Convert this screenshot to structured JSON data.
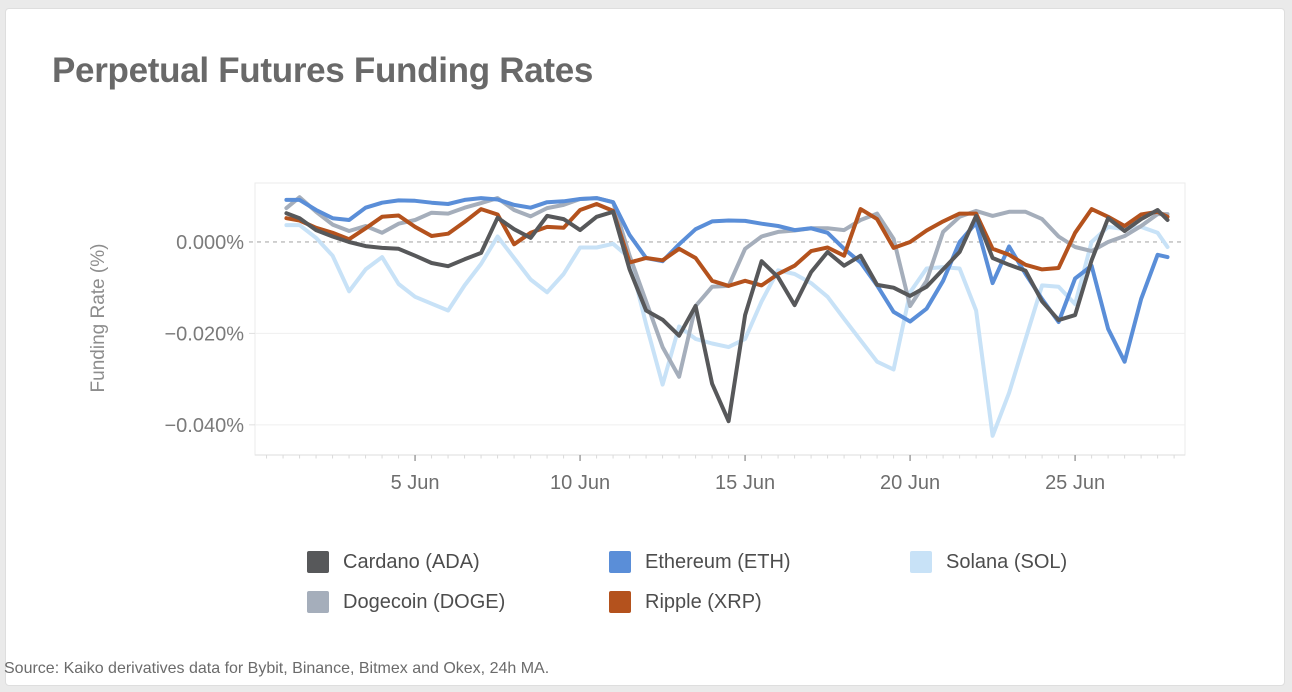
{
  "page": {
    "background": "#eaeaea",
    "card_background": "#ffffff"
  },
  "source": {
    "text": "Source: Kaiko derivatives data for Bybit, Binance, Bitmex and Okex, 24h MA."
  },
  "chart_data": {
    "type": "line",
    "title": "Perpetual Futures Funding Rates",
    "ylabel": "Funding Rate (%)",
    "xlabel": "",
    "x_unit": "day of June",
    "xlim": [
      0.15,
      28.33
    ],
    "ylim": [
      -0.0466,
      0.0129
    ],
    "grid": "horizontal",
    "legend_position": "bottom",
    "zero_line_dashed": true,
    "y_ticks": [
      {
        "v": 0,
        "label": "0.000%"
      },
      {
        "v": -0.02,
        "label": "−0.020%"
      },
      {
        "v": -0.04,
        "label": "−0.040%"
      }
    ],
    "x_ticks": [
      {
        "v": 5,
        "label": "5 Jun"
      },
      {
        "v": 10,
        "label": "10 Jun"
      },
      {
        "v": 15,
        "label": "15 Jun"
      },
      {
        "v": 20,
        "label": "20 Jun"
      },
      {
        "v": 25,
        "label": "25 Jun"
      }
    ],
    "x_minor_tick_step": 0.5,
    "x": [
      1.1,
      1.5,
      2,
      2.5,
      3,
      3.5,
      4,
      4.5,
      5,
      5.5,
      6,
      6.5,
      7,
      7.5,
      8,
      8.5,
      9,
      9.5,
      10,
      10.5,
      11,
      11.5,
      12,
      12.5,
      13,
      13.5,
      14,
      14.5,
      15,
      15.5,
      16,
      16.5,
      17,
      17.5,
      18,
      18.5,
      19,
      19.5,
      20,
      20.5,
      21,
      21.5,
      22,
      22.5,
      23,
      23.5,
      24,
      24.5,
      25,
      25.5,
      26,
      26.5,
      27,
      27.5,
      27.8
    ],
    "series": [
      {
        "name": "Cardano (ADA)",
        "color": "#57585a",
        "values": [
          0.0063,
          0.0052,
          0.0026,
          0.0012,
          0.0,
          -0.0009,
          -0.0013,
          -0.0015,
          -0.003,
          -0.0046,
          -0.0053,
          -0.0038,
          -0.0024,
          0.0053,
          0.0028,
          0.0009,
          0.0057,
          0.005,
          0.0026,
          0.0055,
          0.0066,
          -0.006,
          -0.015,
          -0.017,
          -0.0205,
          -0.014,
          -0.031,
          -0.0392,
          -0.016,
          -0.0042,
          -0.0077,
          -0.0138,
          -0.0066,
          -0.0022,
          -0.0052,
          -0.003,
          -0.0094,
          -0.01,
          -0.0118,
          -0.0098,
          -0.006,
          -0.0022,
          0.0057,
          -0.0035,
          -0.005,
          -0.0063,
          -0.013,
          -0.0171,
          -0.016,
          -0.004,
          0.0052,
          0.0024,
          0.005,
          0.007,
          0.0048
        ]
      },
      {
        "name": "Ethereum (ETH)",
        "color": "#5a8ed8",
        "values": [
          0.0092,
          0.0092,
          0.007,
          0.0052,
          0.0048,
          0.0075,
          0.0086,
          0.0091,
          0.009,
          0.0086,
          0.0083,
          0.0092,
          0.0096,
          0.0093,
          0.0081,
          0.0075,
          0.0087,
          0.0089,
          0.0094,
          0.0096,
          0.0087,
          0.0015,
          -0.0035,
          -0.0042,
          -0.0005,
          0.0028,
          0.0045,
          0.0047,
          0.0046,
          0.004,
          0.0035,
          0.0026,
          0.003,
          0.002,
          -0.0015,
          -0.0045,
          -0.0095,
          -0.0153,
          -0.0174,
          -0.0146,
          -0.0085,
          0.0,
          0.0042,
          -0.009,
          -0.001,
          -0.007,
          -0.0125,
          -0.0175,
          -0.008,
          -0.0052,
          -0.019,
          -0.0262,
          -0.0125,
          -0.0028,
          -0.0033
        ]
      },
      {
        "name": "Solana (SOL)",
        "color": "#c8e2f7",
        "values": [
          0.0037,
          0.0037,
          0.0009,
          -0.003,
          -0.0108,
          -0.006,
          -0.0033,
          -0.0092,
          -0.012,
          -0.0135,
          -0.015,
          -0.0095,
          -0.0048,
          0.0012,
          -0.0035,
          -0.0082,
          -0.011,
          -0.007,
          -0.0012,
          -0.0012,
          -0.0004,
          -0.0035,
          -0.018,
          -0.0312,
          -0.0185,
          -0.0212,
          -0.0222,
          -0.023,
          -0.0212,
          -0.013,
          -0.0062,
          -0.007,
          -0.009,
          -0.012,
          -0.0168,
          -0.0215,
          -0.0262,
          -0.0279,
          -0.011,
          -0.0058,
          -0.0055,
          -0.0058,
          -0.015,
          -0.0424,
          -0.033,
          -0.0212,
          -0.0095,
          -0.0098,
          -0.0136,
          0.0,
          0.0033,
          0.0028,
          0.0033,
          0.002,
          -0.0011
        ]
      },
      {
        "name": "Dogecoin (DOGE)",
        "color": "#a5aebb",
        "values": [
          0.0074,
          0.0098,
          0.0066,
          0.0038,
          0.0024,
          0.0035,
          0.002,
          0.004,
          0.0048,
          0.0064,
          0.0062,
          0.0075,
          0.0085,
          0.0096,
          0.007,
          0.0056,
          0.0074,
          0.0081,
          0.0094,
          0.0096,
          0.0087,
          -0.003,
          -0.013,
          -0.023,
          -0.0295,
          -0.014,
          -0.0098,
          -0.0096,
          -0.0015,
          0.0012,
          0.0022,
          0.0025,
          0.003,
          0.003,
          0.0026,
          0.0048,
          0.0062,
          0.0007,
          -0.014,
          -0.0085,
          0.0022,
          0.0055,
          0.0068,
          0.0057,
          0.0066,
          0.0066,
          0.005,
          0.0012,
          -0.0011,
          -0.002,
          0.0,
          0.0013,
          0.0035,
          0.0061,
          0.0061
        ]
      },
      {
        "name": "Ripple (XRP)",
        "color": "#b4521d",
        "values": [
          0.0052,
          0.0047,
          0.0031,
          0.002,
          0.0006,
          0.003,
          0.0055,
          0.0058,
          0.0033,
          0.0013,
          0.0018,
          0.0044,
          0.0072,
          0.006,
          -0.0005,
          0.002,
          0.0033,
          0.0031,
          0.007,
          0.0083,
          0.0068,
          -0.0045,
          -0.0035,
          -0.004,
          -0.0015,
          -0.0035,
          -0.0085,
          -0.0096,
          -0.0085,
          -0.0095,
          -0.007,
          -0.0052,
          -0.002,
          -0.0012,
          -0.003,
          0.0072,
          0.005,
          -0.0013,
          0.0,
          0.0025,
          0.0045,
          0.0062,
          0.0062,
          -0.0015,
          -0.0028,
          -0.005,
          -0.006,
          -0.0057,
          0.002,
          0.0072,
          0.0055,
          0.0035,
          0.006,
          0.0066,
          0.0055
        ]
      }
    ],
    "draw_order": [
      "Solana (SOL)",
      "Dogecoin (DOGE)",
      "Ethereum (ETH)",
      "Ripple (XRP)",
      "Cardano (ADA)"
    ]
  }
}
